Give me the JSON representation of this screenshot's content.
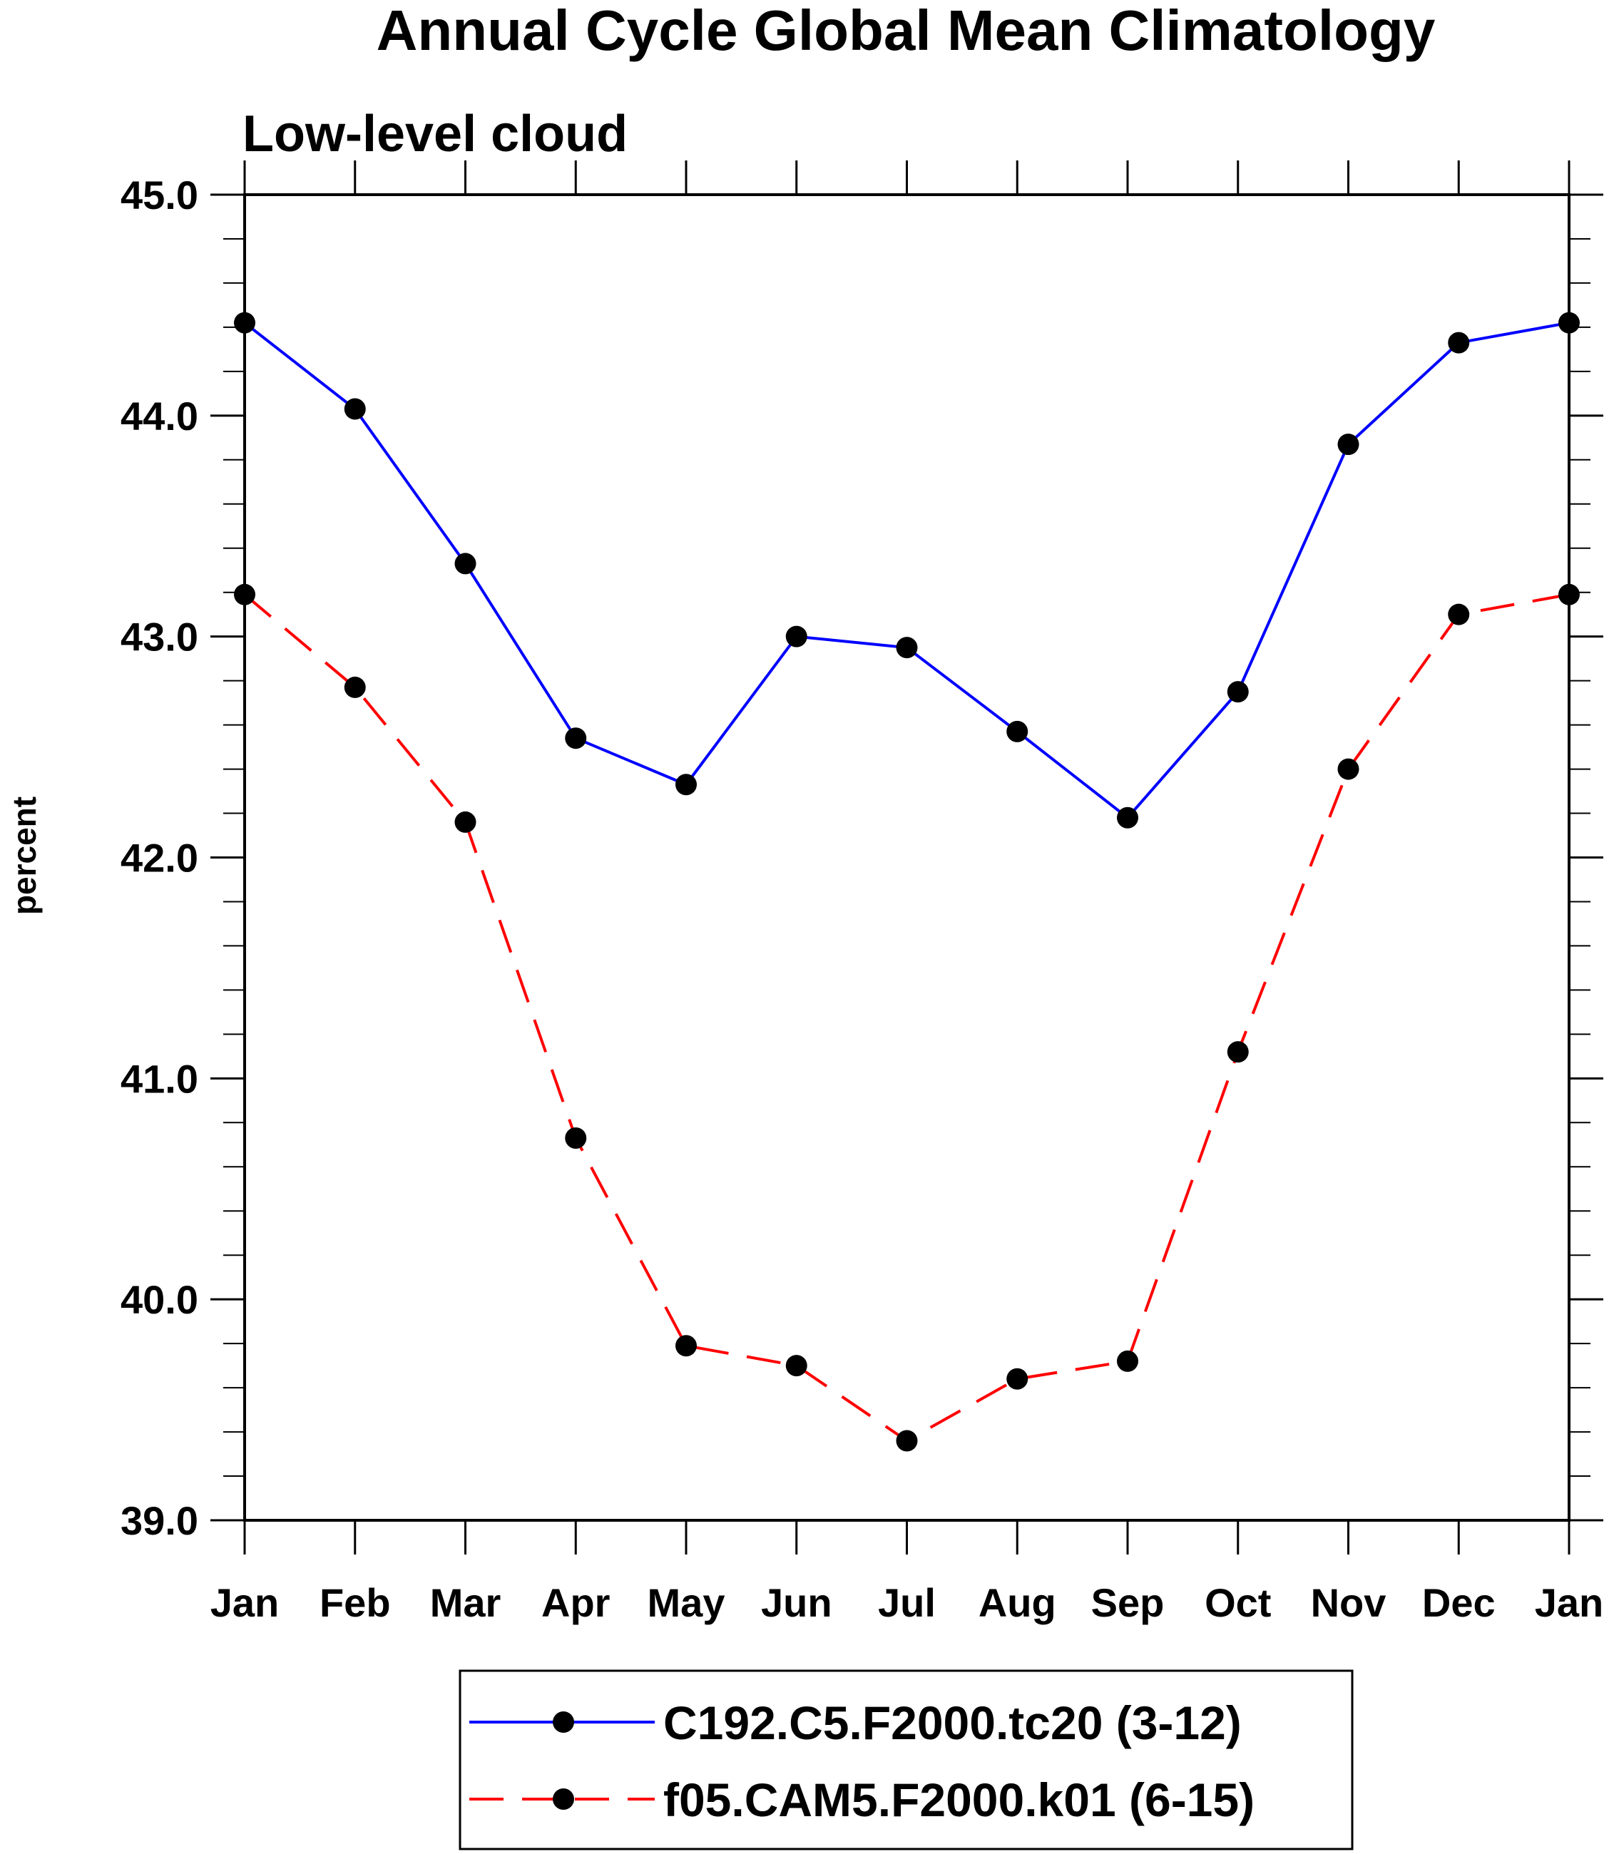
{
  "chart_data": {
    "type": "line",
    "title": "Annual Cycle Global Mean Climatology",
    "subtitle": "Low-level cloud",
    "xlabel": "",
    "ylabel": "percent",
    "categories": [
      "Jan",
      "Feb",
      "Mar",
      "Apr",
      "May",
      "Jun",
      "Jul",
      "Aug",
      "Sep",
      "Oct",
      "Nov",
      "Dec",
      "Jan"
    ],
    "ylim": [
      39.0,
      45.0
    ],
    "yticks": [
      "39.0",
      "40.0",
      "41.0",
      "42.0",
      "43.0",
      "44.0",
      "45.0"
    ],
    "grid": false,
    "legend_position": "bottom",
    "series": [
      {
        "name": "C192.C5.F2000.tc20 (3-12)",
        "color": "#0000ff",
        "line_style": "solid",
        "marker": "filled-circle",
        "values": [
          44.42,
          44.03,
          43.33,
          42.54,
          42.33,
          43.0,
          42.95,
          42.57,
          42.18,
          42.75,
          43.87,
          44.33,
          44.42
        ]
      },
      {
        "name": "f05.CAM5.F2000.k01 (6-15)",
        "color": "#ff0000",
        "line_style": "dashed",
        "marker": "filled-circle",
        "values": [
          43.19,
          42.77,
          42.16,
          40.73,
          39.79,
          39.7,
          39.36,
          39.64,
          39.72,
          41.12,
          42.4,
          43.1,
          43.19
        ]
      }
    ]
  }
}
